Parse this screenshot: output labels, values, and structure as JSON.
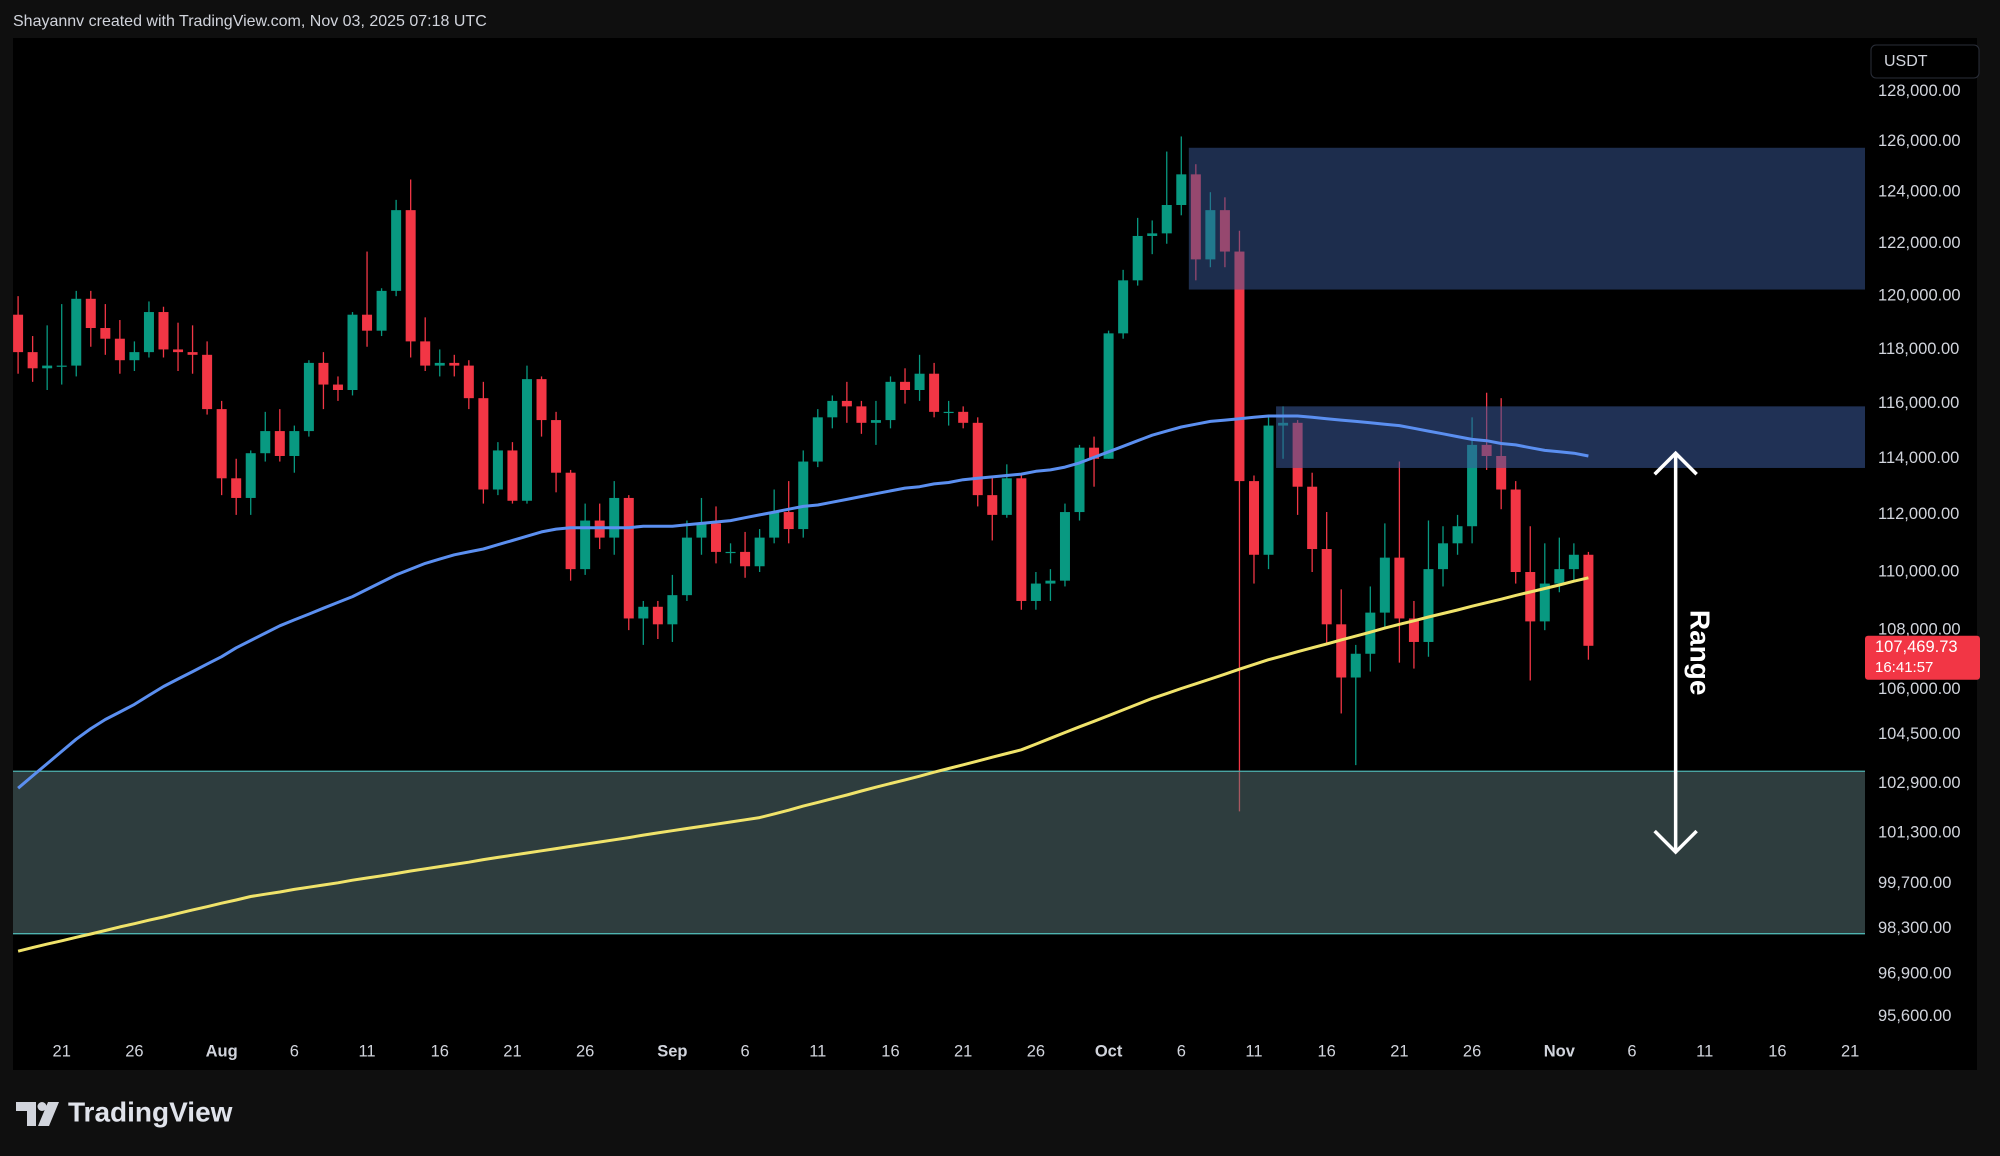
{
  "header": "Shayannv created with TradingView.com, Nov 03, 2025 07:18 UTC",
  "brand": "TradingView",
  "chart_data": {
    "type": "candlestick",
    "currency": "USDT",
    "log_scale": true,
    "grid": false,
    "up_color": "#089981",
    "down_color": "#f23645",
    "x": [
      "07-18",
      "07-19",
      "07-20",
      "07-21",
      "07-22",
      "07-23",
      "07-24",
      "07-25",
      "07-26",
      "07-27",
      "07-28",
      "07-29",
      "07-30",
      "07-31",
      "08-01",
      "08-02",
      "08-03",
      "08-04",
      "08-05",
      "08-06",
      "08-07",
      "08-08",
      "08-09",
      "08-10",
      "08-11",
      "08-12",
      "08-13",
      "08-14",
      "08-15",
      "08-16",
      "08-17",
      "08-18",
      "08-19",
      "08-20",
      "08-21",
      "08-22",
      "08-23",
      "08-24",
      "08-25",
      "08-26",
      "08-27",
      "08-28",
      "08-29",
      "08-30",
      "08-31",
      "09-01",
      "09-02",
      "09-03",
      "09-04",
      "09-05",
      "09-06",
      "09-07",
      "09-08",
      "09-09",
      "09-10",
      "09-11",
      "09-12",
      "09-13",
      "09-14",
      "09-15",
      "09-16",
      "09-17",
      "09-18",
      "09-19",
      "09-20",
      "09-21",
      "09-22",
      "09-23",
      "09-24",
      "09-25",
      "09-26",
      "09-27",
      "09-28",
      "09-29",
      "09-30",
      "10-01",
      "10-02",
      "10-03",
      "10-04",
      "10-05",
      "10-06",
      "10-07",
      "10-08",
      "10-09",
      "10-10",
      "10-11",
      "10-12",
      "10-13",
      "10-14",
      "10-15",
      "10-16",
      "10-17",
      "10-18",
      "10-19",
      "10-20",
      "10-21",
      "10-22",
      "10-23",
      "10-24",
      "10-25",
      "10-26",
      "10-27",
      "10-28",
      "10-29",
      "10-30",
      "10-31",
      "11-01",
      "11-02",
      "11-03"
    ],
    "open": [
      119300,
      117900,
      117300,
      117400,
      117400,
      119900,
      118800,
      118400,
      117600,
      117900,
      119400,
      118000,
      117900,
      117800,
      115800,
      113300,
      112600,
      114200,
      115000,
      114100,
      115000,
      117500,
      116700,
      116500,
      119300,
      118700,
      120200,
      123300,
      118300,
      117400,
      117500,
      117400,
      116200,
      112900,
      114300,
      112500,
      116900,
      115400,
      113500,
      110100,
      111800,
      111200,
      112600,
      108400,
      108800,
      108200,
      109200,
      111200,
      111700,
      110700,
      110700,
      110200,
      111200,
      112100,
      111500,
      113900,
      115500,
      116100,
      115900,
      115300,
      115400,
      116800,
      116500,
      117100,
      115700,
      115700,
      115300,
      112700,
      112000,
      113300,
      109000,
      109600,
      109700,
      112100,
      114400,
      114000,
      118600,
      120600,
      122300,
      122400,
      123500,
      124700,
      121400,
      123300,
      121700,
      113200,
      110600,
      115200,
      115300,
      113000,
      110800,
      108200,
      106400,
      107200,
      108600,
      110500,
      108400,
      107600,
      110100,
      111000,
      111600,
      114500,
      114100,
      112900,
      110000,
      108300,
      109600,
      110100,
      110600
    ],
    "high": [
      120000,
      118500,
      118900,
      119700,
      120200,
      120200,
      119700,
      119100,
      118300,
      119800,
      119600,
      119000,
      118900,
      118300,
      116100,
      114000,
      114300,
      115700,
      115800,
      115200,
      117600,
      117900,
      117000,
      119400,
      121700,
      120300,
      123700,
      124500,
      119200,
      118000,
      117800,
      117600,
      116800,
      114600,
      114600,
      117400,
      117000,
      115700,
      113600,
      112400,
      112400,
      113200,
      112700,
      109000,
      109000,
      109900,
      111800,
      112600,
      112300,
      111000,
      111400,
      111500,
      112900,
      113200,
      114300,
      115800,
      116300,
      116800,
      116100,
      116100,
      117000,
      117300,
      117800,
      117500,
      116100,
      115900,
      115500,
      113400,
      113800,
      113400,
      110000,
      110100,
      112400,
      114500,
      114800,
      118700,
      121000,
      123000,
      122900,
      125600,
      126200,
      125100,
      124000,
      123800,
      122500,
      113400,
      115500,
      115900,
      115400,
      113500,
      112100,
      109400,
      107500,
      109500,
      111700,
      113900,
      109000,
      111800,
      111600,
      112000,
      115500,
      116400,
      116200,
      113200,
      111600,
      111000,
      111200,
      111000,
      110700
    ],
    "low": [
      117100,
      116800,
      116500,
      116700,
      117000,
      118100,
      117800,
      117100,
      117200,
      117700,
      117700,
      117200,
      117100,
      115600,
      112700,
      112000,
      112000,
      113900,
      113900,
      113500,
      114800,
      115800,
      116100,
      116300,
      118100,
      118500,
      120000,
      117700,
      117200,
      117000,
      117000,
      115800,
      112400,
      112700,
      112400,
      112400,
      114800,
      112800,
      109700,
      109900,
      110800,
      110600,
      108000,
      107500,
      107700,
      107600,
      109000,
      110600,
      110300,
      110300,
      109800,
      110000,
      111000,
      111000,
      111200,
      113700,
      115100,
      115300,
      114900,
      114500,
      115100,
      116000,
      116100,
      115500,
      115200,
      115100,
      112300,
      111100,
      111900,
      108700,
      108700,
      109000,
      109500,
      111800,
      113000,
      114000,
      118400,
      120400,
      121600,
      122000,
      123100,
      120600,
      121100,
      121100,
      102000,
      109600,
      110100,
      114000,
      112000,
      110000,
      107500,
      105200,
      103500,
      106600,
      108100,
      106900,
      106700,
      107100,
      109500,
      110600,
      111000,
      113600,
      112200,
      109600,
      106300,
      108000,
      109300,
      109700,
      107000
    ],
    "close": [
      117900,
      117300,
      117400,
      117400,
      119900,
      118800,
      118400,
      117600,
      117900,
      119400,
      118000,
      117900,
      117800,
      115800,
      113300,
      112600,
      114200,
      115000,
      114100,
      115000,
      117500,
      116700,
      116500,
      119300,
      118700,
      120200,
      123300,
      118300,
      117400,
      117500,
      117400,
      116200,
      112900,
      114300,
      112500,
      116900,
      115400,
      113500,
      110100,
      111800,
      111200,
      112600,
      108400,
      108800,
      108200,
      109200,
      111200,
      111700,
      110700,
      110700,
      110200,
      111200,
      112100,
      111500,
      113900,
      115500,
      116100,
      115900,
      115300,
      115400,
      116800,
      116500,
      117100,
      115700,
      115700,
      115300,
      112700,
      112000,
      113300,
      109000,
      109600,
      109700,
      112100,
      114400,
      114000,
      118600,
      120600,
      122300,
      122400,
      123500,
      124700,
      121400,
      123300,
      121700,
      113200,
      110600,
      115200,
      115300,
      113000,
      110800,
      108200,
      106400,
      107200,
      108600,
      110500,
      108400,
      107600,
      110100,
      111000,
      111600,
      114500,
      114100,
      112900,
      110000,
      108300,
      109600,
      110100,
      110600,
      107469.73
    ],
    "lines": [
      {
        "color": "#5b8ff0",
        "values": [
          102750,
          103150,
          103550,
          103950,
          104350,
          104700,
          105000,
          105250,
          105500,
          105800,
          106100,
          106350,
          106600,
          106850,
          107100,
          107400,
          107650,
          107900,
          108150,
          108350,
          108550,
          108750,
          108950,
          109150,
          109400,
          109650,
          109900,
          110100,
          110300,
          110450,
          110600,
          110700,
          110800,
          110950,
          111100,
          111250,
          111400,
          111500,
          111550,
          111550,
          111550,
          111550,
          111550,
          111600,
          111600,
          111600,
          111650,
          111700,
          111750,
          111800,
          111900,
          112000,
          112100,
          112200,
          112300,
          112350,
          112450,
          112550,
          112650,
          112750,
          112850,
          112950,
          113000,
          113100,
          113150,
          113250,
          113300,
          113350,
          113400,
          113450,
          113550,
          113600,
          113700,
          113850,
          114050,
          114250,
          114450,
          114650,
          114850,
          115000,
          115150,
          115250,
          115350,
          115400,
          115450,
          115500,
          115550,
          115550,
          115550,
          115500,
          115450,
          115400,
          115350,
          115300,
          115250,
          115200,
          115100,
          115000,
          114900,
          114800,
          114700,
          114650,
          114550,
          114500,
          114400,
          114300,
          114250,
          114200,
          114100
        ]
      },
      {
        "color": "#f0e36a",
        "values": [
          97600,
          97710,
          97820,
          97920,
          98030,
          98130,
          98240,
          98350,
          98450,
          98560,
          98660,
          98770,
          98880,
          98980,
          99090,
          99190,
          99300,
          99370,
          99440,
          99520,
          99590,
          99660,
          99730,
          99810,
          99880,
          99950,
          100020,
          100100,
          100170,
          100240,
          100310,
          100380,
          100460,
          100530,
          100600,
          100670,
          100740,
          100810,
          100880,
          100950,
          101020,
          101090,
          101160,
          101240,
          101310,
          101380,
          101450,
          101520,
          101590,
          101660,
          101730,
          101800,
          101920,
          102040,
          102170,
          102290,
          102410,
          102530,
          102660,
          102780,
          102900,
          103020,
          103140,
          103270,
          103390,
          103510,
          103630,
          103760,
          103880,
          104000,
          104190,
          104380,
          104570,
          104760,
          104940,
          105130,
          105320,
          105510,
          105700,
          105860,
          106030,
          106190,
          106350,
          106510,
          106680,
          106840,
          107000,
          107130,
          107270,
          107400,
          107530,
          107670,
          107800,
          107930,
          108070,
          108200,
          108320,
          108450,
          108570,
          108690,
          108820,
          108940,
          109060,
          109190,
          109310,
          109430,
          109550,
          109680,
          109800
        ]
      }
    ],
    "zones": [
      {
        "from": "10-07",
        "top": 125750,
        "bottom": 120250,
        "color": "#3a5a9a",
        "opacity": 0.5
      },
      {
        "from": "10-13",
        "top": 115900,
        "bottom": 113670,
        "color": "#3a5a9a",
        "opacity": 0.55
      },
      {
        "top": 103300,
        "bottom": 98140,
        "color": "#5c7a7c",
        "opacity": 0.5,
        "border": "#4fb3b0"
      }
    ],
    "range": {
      "text": "Range",
      "date": "11-09",
      "from": 114200,
      "to": 100700,
      "color": "#ffffff"
    },
    "last_price": {
      "value": 107469.73,
      "label": "107,469.73",
      "countdown": "16:41:57"
    },
    "ylim": [
      95024,
      130180
    ],
    "yticks": [
      {
        "value": 95600,
        "label": "95,600.00"
      },
      {
        "value": 96900,
        "label": "96,900.00"
      },
      {
        "value": 98300,
        "label": "98,300.00"
      },
      {
        "value": 99700,
        "label": "99,700.00"
      },
      {
        "value": 101300,
        "label": "101,300.00"
      },
      {
        "value": 102900,
        "label": "102,900.00"
      },
      {
        "value": 104500,
        "label": "104,500.00"
      },
      {
        "value": 106000,
        "label": "106,000.00"
      },
      {
        "value": 108000,
        "label": "108,000.00"
      },
      {
        "value": 110000,
        "label": "110,000.00"
      },
      {
        "value": 112000,
        "label": "112,000.00"
      },
      {
        "value": 114000,
        "label": "114,000.00"
      },
      {
        "value": 116000,
        "label": "116,000.00"
      },
      {
        "value": 118000,
        "label": "118,000.00"
      },
      {
        "value": 120000,
        "label": "120,000.00"
      },
      {
        "value": 122000,
        "label": "122,000.00"
      },
      {
        "value": 124000,
        "label": "124,000.00"
      },
      {
        "value": 126000,
        "label": "126,000.00"
      },
      {
        "value": 128000,
        "label": "128,000.00"
      }
    ],
    "xticks": [
      {
        "value": "07-21",
        "label": "21"
      },
      {
        "value": "07-26",
        "label": "26"
      },
      {
        "value": "08-01",
        "label": "Aug"
      },
      {
        "value": "08-06",
        "label": "6"
      },
      {
        "value": "08-11",
        "label": "11"
      },
      {
        "value": "08-16",
        "label": "16"
      },
      {
        "value": "08-21",
        "label": "21"
      },
      {
        "value": "08-26",
        "label": "26"
      },
      {
        "value": "09-01",
        "label": "Sep"
      },
      {
        "value": "09-06",
        "label": "6"
      },
      {
        "value": "09-11",
        "label": "11"
      },
      {
        "value": "09-16",
        "label": "16"
      },
      {
        "value": "09-21",
        "label": "21"
      },
      {
        "value": "09-26",
        "label": "26"
      },
      {
        "value": "10-01",
        "label": "Oct"
      },
      {
        "value": "10-06",
        "label": "6"
      },
      {
        "value": "10-11",
        "label": "11"
      },
      {
        "value": "10-16",
        "label": "16"
      },
      {
        "value": "10-21",
        "label": "21"
      },
      {
        "value": "10-26",
        "label": "26"
      },
      {
        "value": "11-01",
        "label": "Nov"
      },
      {
        "value": "11-06",
        "label": "6"
      },
      {
        "value": "11-11",
        "label": "11"
      },
      {
        "value": "11-16",
        "label": "16"
      },
      {
        "value": "11-21",
        "label": "21"
      }
    ]
  }
}
